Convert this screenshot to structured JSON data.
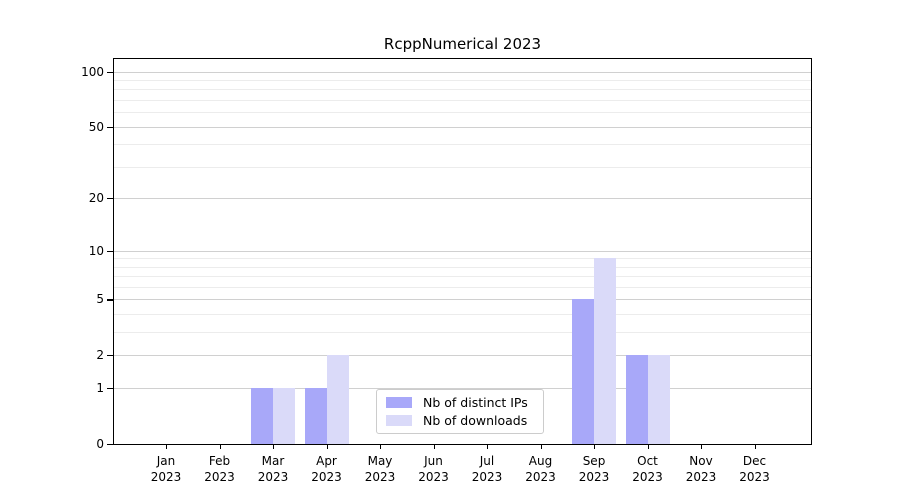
{
  "chart_data": {
    "type": "bar",
    "title": "RcppNumerical 2023",
    "categories": [
      "Jan 2023",
      "Feb 2023",
      "Mar 2023",
      "Apr 2023",
      "May 2023",
      "Jun 2023",
      "Jul 2023",
      "Aug 2023",
      "Sep 2023",
      "Oct 2023",
      "Nov 2023",
      "Dec 2023"
    ],
    "series": [
      {
        "name": "Nb of distinct IPs",
        "color": "#a8a8f9",
        "values": [
          0,
          0,
          1,
          1,
          0,
          0,
          0,
          0,
          5,
          2,
          0,
          0
        ]
      },
      {
        "name": "Nb of downloads",
        "color": "#dadaf9",
        "values": [
          0,
          0,
          1,
          2,
          0,
          0,
          0,
          0,
          9,
          2,
          0,
          0
        ]
      }
    ],
    "xlabel": "",
    "ylabel": "",
    "yscale": "log1p",
    "y_ticks": [
      0,
      1,
      2,
      5,
      10,
      20,
      50,
      100
    ],
    "y_minor_gridlines": [
      3,
      4,
      6,
      7,
      8,
      9,
      30,
      40,
      60,
      70,
      80,
      90
    ],
    "ylim": [
      0,
      116
    ],
    "grid": true,
    "legend_position": "lower center inside"
  },
  "colors": {
    "major_grid": "#d0d0d0",
    "minor_grid": "#ececec",
    "frame": "#000000",
    "text": "#000000",
    "legend_border": "#cccccc",
    "background": "#ffffff"
  }
}
